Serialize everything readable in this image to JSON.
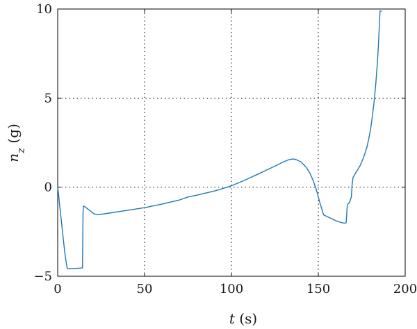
{
  "chart_data": {
    "type": "line",
    "title": "",
    "xlabel": {
      "var": "t",
      "unit": " (s)"
    },
    "ylabel": {
      "var": "n",
      "sub": "z",
      "unit": " (g)"
    },
    "xlim": [
      0,
      200
    ],
    "ylim": [
      -5,
      10
    ],
    "xticks": [
      0,
      50,
      100,
      150,
      200
    ],
    "yticks": [
      -5,
      0,
      5,
      10
    ],
    "xtick_labels": [
      "0",
      "50",
      "100",
      "150",
      "200"
    ],
    "ytick_labels": [
      "−5",
      "0",
      "5",
      "10"
    ],
    "grid": "dotted",
    "line_color": "#1f77b4",
    "series": [
      {
        "x": [
          0,
          0.5,
          1,
          2,
          3,
          4,
          5,
          5.5,
          6,
          8,
          10,
          12,
          14.3,
          14.5,
          14.6,
          14.8,
          15,
          17,
          19,
          21,
          23,
          25,
          30,
          40,
          50,
          60,
          70,
          75,
          80,
          90,
          95,
          100,
          105,
          110,
          115,
          120,
          125,
          130,
          133,
          135,
          137,
          140,
          143,
          145,
          147,
          149,
          150,
          151,
          152,
          153,
          155,
          158,
          160,
          163,
          165,
          166,
          166.3,
          166.6,
          167,
          168,
          169,
          169.5,
          170,
          171,
          172,
          174,
          176,
          178,
          179,
          180,
          181,
          182,
          183,
          184,
          184.5,
          185,
          185.3,
          185.5,
          185.7,
          186.5
        ],
        "y": [
          0,
          -0.4,
          -0.9,
          -1.8,
          -2.7,
          -3.6,
          -4.3,
          -4.55,
          -4.57,
          -4.57,
          -4.56,
          -4.55,
          -4.53,
          -2.5,
          -1.4,
          -1.1,
          -1.05,
          -1.2,
          -1.35,
          -1.5,
          -1.55,
          -1.52,
          -1.45,
          -1.3,
          -1.15,
          -0.95,
          -0.72,
          -0.55,
          -0.45,
          -0.22,
          -0.08,
          0.08,
          0.28,
          0.5,
          0.72,
          0.95,
          1.18,
          1.42,
          1.54,
          1.58,
          1.56,
          1.42,
          1.12,
          0.82,
          0.38,
          -0.18,
          -0.55,
          -0.9,
          -1.22,
          -1.55,
          -1.65,
          -1.78,
          -1.88,
          -1.98,
          -2.02,
          -2.0,
          -1.6,
          -1.1,
          -0.95,
          -0.85,
          -0.55,
          0.2,
          0.55,
          0.72,
          0.88,
          1.2,
          1.65,
          2.25,
          2.7,
          3.2,
          3.9,
          4.7,
          5.7,
          7.0,
          7.8,
          8.8,
          9.4,
          9.88,
          9.88,
          9.88
        ]
      }
    ]
  }
}
